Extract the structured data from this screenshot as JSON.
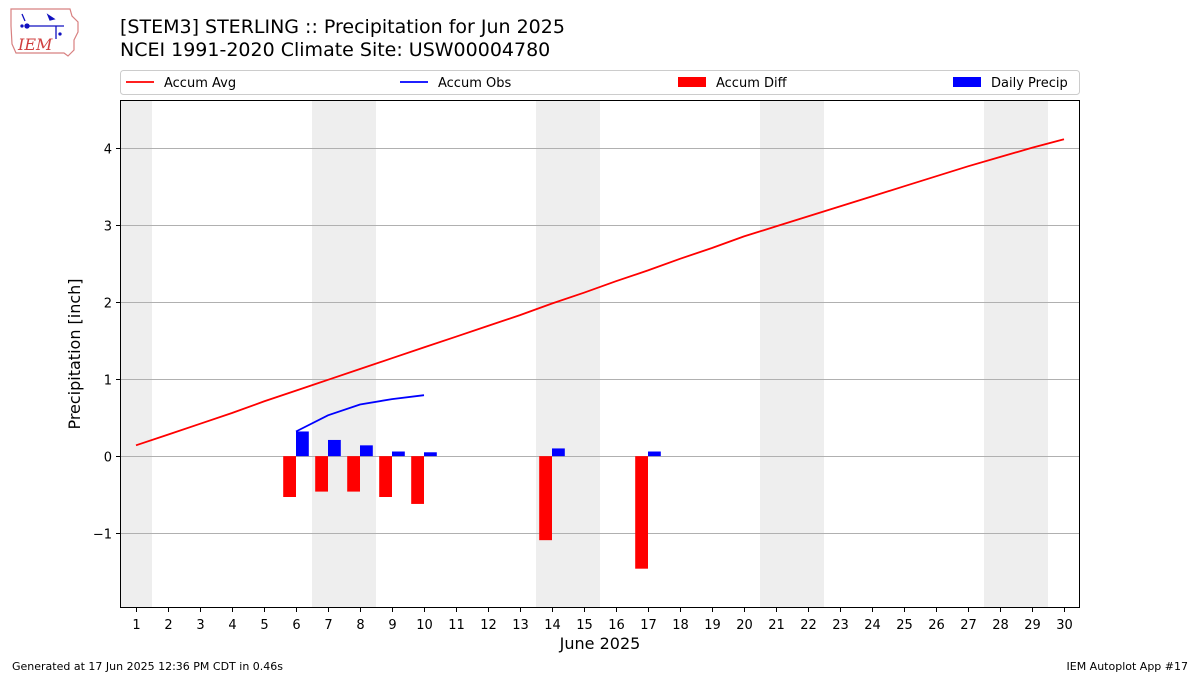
{
  "header": {
    "title": "[STEM3] STERLING :: Precipitation for Jun 2025",
    "subtitle": "NCEI 1991-2020 Climate Site: USW00004780",
    "logo_text": "IEM"
  },
  "footer": {
    "generated": "Generated at 17 Jun 2025 12:36 PM CDT in 0.46s",
    "app": "IEM Autoplot App #17"
  },
  "colors": {
    "avg": "#ff0000",
    "obs": "#0000ff",
    "diff": "#ff0000",
    "precip": "#0000ff",
    "weekend_shade": "#eeeeee",
    "grid": "#b0b0b0"
  },
  "chart_data": {
    "type": "bar",
    "xlabel": "June 2025",
    "ylabel": "Precipitation [inch]",
    "xlim": [
      0.5,
      30.5
    ],
    "ylim": [
      -1.97,
      4.62
    ],
    "yticks": [
      -1,
      0,
      1,
      2,
      3,
      4
    ],
    "ytick_labels": [
      "−1",
      "0",
      "1",
      "2",
      "3",
      "4"
    ],
    "xticks": [
      1,
      2,
      3,
      4,
      5,
      6,
      7,
      8,
      9,
      10,
      11,
      12,
      13,
      14,
      15,
      16,
      17,
      18,
      19,
      20,
      21,
      22,
      23,
      24,
      25,
      26,
      27,
      28,
      29,
      30
    ],
    "grid": "y-axis major gridlines",
    "legend_position": "top (above plot, single row)",
    "shaded_days": [
      [
        0.5,
        1.5
      ],
      [
        6.5,
        8.5
      ],
      [
        13.5,
        15.5
      ],
      [
        20.5,
        22.5
      ],
      [
        27.5,
        29.5
      ]
    ],
    "series": [
      {
        "name": "Accum Avg",
        "type": "line",
        "color": "#ff0000",
        "x": [
          1,
          2,
          3,
          4,
          5,
          6,
          7,
          8,
          9,
          10,
          11,
          12,
          13,
          14,
          15,
          16,
          17,
          18,
          19,
          20,
          21,
          22,
          23,
          24,
          25,
          26,
          27,
          28,
          29,
          30
        ],
        "values": [
          0.14,
          0.28,
          0.42,
          0.56,
          0.71,
          0.85,
          0.99,
          1.13,
          1.27,
          1.41,
          1.55,
          1.69,
          1.83,
          1.98,
          2.12,
          2.27,
          2.41,
          2.56,
          2.7,
          2.85,
          2.98,
          3.11,
          3.24,
          3.37,
          3.5,
          3.63,
          3.76,
          3.88,
          4.0,
          4.11
        ]
      },
      {
        "name": "Accum Obs",
        "type": "line",
        "color": "#0000ff",
        "x": [
          6,
          7,
          8,
          9,
          10
        ],
        "values": [
          0.32,
          0.53,
          0.67,
          0.74,
          0.79
        ]
      },
      {
        "name": "Accum Diff",
        "type": "bar",
        "color": "#ff0000",
        "x": [
          6,
          7,
          8,
          9,
          10,
          14,
          17
        ],
        "values": [
          -0.53,
          -0.46,
          -0.46,
          -0.53,
          -0.62,
          -1.09,
          -1.46
        ]
      },
      {
        "name": "Daily Precip",
        "type": "bar",
        "color": "#0000ff",
        "x": [
          6,
          7,
          8,
          9,
          10,
          14,
          17
        ],
        "values": [
          0.32,
          0.21,
          0.14,
          0.06,
          0.05,
          0.1,
          0.06
        ]
      }
    ]
  }
}
